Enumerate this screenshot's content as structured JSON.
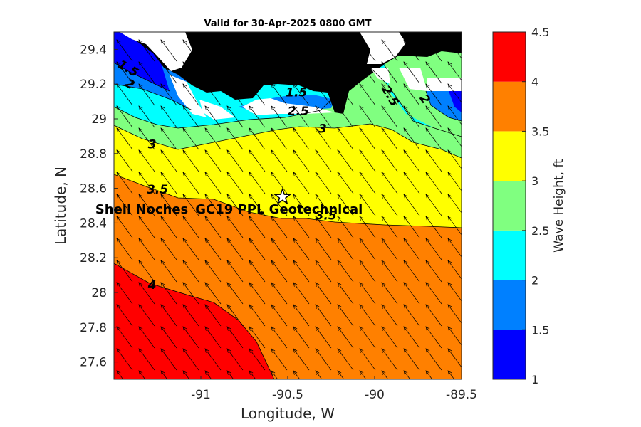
{
  "title": "Valid for 30-Apr-2025 0800 GMT",
  "chart_data": {
    "type": "contour-map",
    "xlabel": "Longitude, W",
    "ylabel": "Latitude, N",
    "xlim": [
      -91.5,
      -89.5
    ],
    "ylim": [
      27.5,
      29.5
    ],
    "xticks": [
      -91,
      -90.5,
      -90,
      -89.5
    ],
    "xtick_labels": [
      "-91",
      "-90.5",
      "-90",
      "-89.5"
    ],
    "yticks": [
      27.6,
      27.8,
      28,
      28.2,
      28.4,
      28.6,
      28.8,
      29,
      29.2,
      29.4
    ],
    "ytick_labels": [
      "27.6",
      "27.8",
      "28",
      "28.2",
      "28.4",
      "28.6",
      "28.8",
      "29",
      "29.2",
      "29.4"
    ],
    "colorbar": {
      "label": "Wave Height, ft",
      "levels": [
        1,
        1.5,
        2,
        2.5,
        3,
        3.5,
        4,
        4.5
      ],
      "tick_labels": [
        "1",
        "1.5",
        "2",
        "2.5",
        "3",
        "3.5",
        "4",
        "4.5"
      ],
      "colors": [
        "#0000ff",
        "#0080ff",
        "#00ffff",
        "#80ff80",
        "#ffff00",
        "#ff8000",
        "#ff0000"
      ]
    },
    "contour_labels": [
      {
        "text": "1.5",
        "lon": -91.43,
        "lat": 29.27,
        "rotate": 30
      },
      {
        "text": "2",
        "lon": -91.42,
        "lat": 29.18,
        "rotate": 30
      },
      {
        "text": "1.5",
        "lon": -90.45,
        "lat": 29.13,
        "rotate": 0
      },
      {
        "text": "2.5",
        "lon": -90.44,
        "lat": 29.02,
        "rotate": 0
      },
      {
        "text": "3",
        "lon": -90.3,
        "lat": 28.92,
        "rotate": 0
      },
      {
        "text": "2.5",
        "lon": -89.93,
        "lat": 29.12,
        "rotate": 60
      },
      {
        "text": "2",
        "lon": -89.73,
        "lat": 29.1,
        "rotate": 55
      },
      {
        "text": "3",
        "lon": -91.28,
        "lat": 28.83,
        "rotate": 0
      },
      {
        "text": "3.5",
        "lon": -91.25,
        "lat": 28.57,
        "rotate": 0
      },
      {
        "text": "3.5",
        "lon": -90.28,
        "lat": 28.42,
        "rotate": 0
      },
      {
        "text": "4",
        "lon": -91.28,
        "lat": 28.02,
        "rotate": 0
      }
    ],
    "sites": [
      {
        "name": "Shell Noches",
        "lon": -91.34,
        "lat": 28.48
      },
      {
        "name": "GC19 PPL  Geotechnical",
        "lon": -90.55,
        "lat": 28.48
      }
    ],
    "star": {
      "lon": -90.53,
      "lat": 28.55
    },
    "vectors": {
      "direction": "toward-northwest",
      "note": "wave direction arrows on regular grid"
    }
  }
}
